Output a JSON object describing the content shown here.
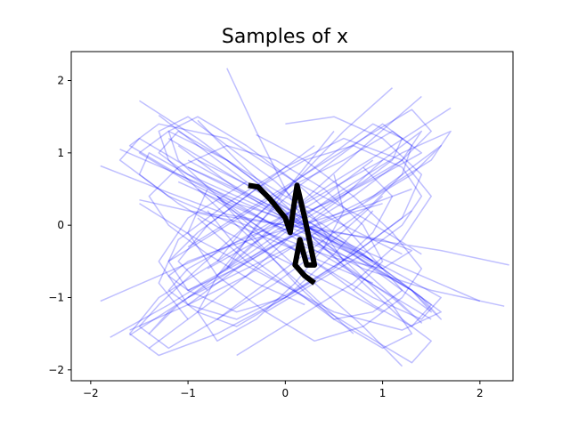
{
  "chart_data": {
    "type": "line",
    "title": "Samples of x",
    "xlabel": "",
    "ylabel": "",
    "xlim": [
      -2.2,
      2.34
    ],
    "ylim": [
      -2.15,
      2.4
    ],
    "x_ticks": [
      -2,
      -1,
      0,
      1,
      2
    ],
    "y_ticks": [
      -2,
      -1,
      0,
      1,
      2
    ],
    "x_tick_labels": [
      "−2",
      "−1",
      "0",
      "1",
      "2"
    ],
    "y_tick_labels": [
      "−2",
      "−1",
      "0",
      "1",
      "2"
    ],
    "grid": false,
    "legend": "none",
    "colors": {
      "samples": "#0000ff",
      "highlight": "#000000",
      "axes": "#000000"
    },
    "sample_opacity": 0.25,
    "series": [
      {
        "x": [
          -1.9,
          -1.2,
          -0.6,
          0.0,
          0.7,
          1.3,
          1.6,
          1.2,
          0.5,
          -0.2,
          -0.9,
          -1.5
        ],
        "y": [
          0.82,
          0.45,
          0.15,
          0.0,
          -0.4,
          -0.9,
          -1.2,
          -1.45,
          -1.2,
          -0.7,
          -0.2,
          0.3
        ]
      },
      {
        "x": [
          -1.5,
          -0.9,
          -0.3,
          0.1,
          0.6,
          1.1,
          1.4,
          1.2,
          0.7,
          0.1,
          -0.5,
          -1.1
        ],
        "y": [
          1.72,
          1.2,
          0.6,
          0.05,
          -0.55,
          -1.0,
          -1.35,
          -1.1,
          -0.5,
          0.0,
          0.5,
          1.1
        ]
      },
      {
        "x": [
          -0.6,
          -0.3,
          0.0,
          0.3,
          0.8,
          1.2,
          1.5,
          1.3,
          0.8,
          0.2,
          -0.4,
          -0.9
        ],
        "y": [
          2.17,
          1.3,
          0.5,
          -0.2,
          -0.8,
          -1.3,
          -1.6,
          -1.9,
          -1.5,
          -1.0,
          -0.5,
          0.1
        ]
      },
      {
        "x": [
          2.3,
          1.6,
          0.9,
          0.2,
          -0.5,
          -1.1,
          -1.6,
          -1.3,
          -0.6,
          0.1,
          0.8,
          1.4
        ],
        "y": [
          -0.55,
          -0.35,
          -0.2,
          0.0,
          0.3,
          0.7,
          1.1,
          1.4,
          1.2,
          0.6,
          0.1,
          -0.4
        ]
      },
      {
        "x": [
          1.7,
          1.1,
          0.5,
          -0.1,
          -0.7,
          -1.3,
          -1.6,
          -1.3,
          -0.7,
          0.0,
          0.7,
          1.3
        ],
        "y": [
          1.62,
          1.1,
          0.6,
          0.05,
          -0.5,
          -1.0,
          -1.5,
          -1.8,
          -1.5,
          -1.0,
          -0.4,
          0.2
        ]
      },
      {
        "x": [
          -1.8,
          -1.2,
          -0.6,
          0.0,
          0.6,
          1.2,
          1.7,
          1.5,
          0.9,
          0.3,
          -0.3,
          -1.0
        ],
        "y": [
          -1.55,
          -1.1,
          -0.6,
          -0.05,
          0.5,
          1.0,
          1.3,
          0.9,
          0.4,
          0.0,
          -0.4,
          -0.9
        ]
      },
      {
        "x": [
          2.0,
          1.4,
          0.8,
          0.2,
          -0.4,
          -1.0,
          -1.5,
          -1.7,
          -1.2,
          -0.5,
          0.2,
          0.9
        ],
        "y": [
          -1.05,
          -0.7,
          -0.35,
          0.0,
          0.4,
          0.8,
          1.2,
          0.9,
          0.4,
          0.0,
          -0.4,
          -0.8
        ]
      },
      {
        "x": [
          2.25,
          1.5,
          0.8,
          0.2,
          -0.4,
          -1.0,
          -1.5,
          -1.2,
          -0.6,
          0.0,
          0.6,
          1.2
        ],
        "y": [
          -1.12,
          -0.9,
          -0.6,
          -0.2,
          0.2,
          0.6,
          1.0,
          1.3,
          0.9,
          0.4,
          0.0,
          -0.4
        ]
      },
      {
        "x": [
          -1.6,
          -1.0,
          -0.4,
          0.1,
          0.7,
          1.2,
          1.5,
          1.3,
          0.8,
          0.2,
          -0.4,
          -1.0
        ],
        "y": [
          -1.52,
          -1.0,
          -0.5,
          0.0,
          0.5,
          0.9,
          1.3,
          1.6,
          1.2,
          0.7,
          0.2,
          -0.3
        ]
      },
      {
        "x": [
          -1.3,
          -0.8,
          -0.3,
          0.2,
          0.8,
          1.3,
          1.6,
          1.4,
          0.9,
          0.3,
          -0.3,
          -0.9
        ],
        "y": [
          1.52,
          1.0,
          0.5,
          0.0,
          -0.5,
          -0.9,
          -1.3,
          -1.0,
          -0.5,
          0.0,
          0.5,
          0.9
        ]
      },
      {
        "x": [
          -1.4,
          -0.9,
          -0.4,
          0.1,
          0.6,
          1.0,
          1.4,
          1.2,
          0.7,
          0.1,
          -0.5,
          -1.0
        ],
        "y": [
          -1.7,
          -1.2,
          -0.7,
          -0.1,
          0.4,
          0.9,
          1.3,
          0.9,
          0.4,
          -0.1,
          -0.6,
          -1.1
        ]
      },
      {
        "x": [
          -0.9,
          -0.5,
          -0.1,
          0.3,
          0.7,
          1.1,
          1.3,
          1.0,
          0.5,
          0.0,
          -0.5,
          -0.8
        ],
        "y": [
          1.45,
          0.9,
          0.4,
          -0.1,
          -0.6,
          -1.1,
          -1.5,
          -1.7,
          -1.3,
          -0.8,
          -0.3,
          0.2
        ]
      },
      {
        "x": [
          1.1,
          0.6,
          0.1,
          -0.4,
          -0.9,
          -1.3,
          -1.5,
          -1.2,
          -0.7,
          -0.1,
          0.5,
          1.0
        ],
        "y": [
          1.9,
          1.3,
          0.6,
          0.0,
          -0.6,
          -1.1,
          -1.4,
          -1.7,
          -1.3,
          -0.8,
          -0.2,
          0.4
        ]
      },
      {
        "x": [
          1.4,
          0.9,
          0.4,
          -0.1,
          -0.6,
          -1.1,
          -1.4,
          -1.2,
          -0.7,
          -0.2,
          0.4,
          0.9
        ],
        "y": [
          1.78,
          1.2,
          0.6,
          0.0,
          -0.6,
          -1.1,
          -1.5,
          -1.2,
          -0.7,
          -0.1,
          0.4,
          0.9
        ]
      },
      {
        "x": [
          0.0,
          0.5,
          1.0,
          1.4,
          1.2,
          0.7,
          0.1,
          -0.5,
          -1.0,
          -1.3,
          -1.0,
          -0.4
        ],
        "y": [
          1.4,
          1.5,
          1.2,
          0.7,
          0.1,
          -0.4,
          -0.9,
          -1.3,
          -1.1,
          -0.5,
          0.1,
          0.6
        ]
      },
      {
        "x": [
          -1.7,
          -1.1,
          -0.5,
          0.1,
          0.7,
          1.2,
          1.6,
          1.4,
          0.9,
          0.3,
          -0.3,
          -0.9
        ],
        "y": [
          1.05,
          0.7,
          0.35,
          0.0,
          -0.35,
          -0.7,
          -1.0,
          -1.3,
          -1.0,
          -0.5,
          0.0,
          0.5
        ]
      },
      {
        "x": [
          -1.6,
          -1.0,
          -0.4,
          0.2,
          0.8,
          1.3,
          1.6,
          1.3,
          0.8,
          0.2,
          -0.4,
          -1.0
        ],
        "y": [
          -1.45,
          -1.1,
          -0.7,
          -0.2,
          0.3,
          0.7,
          1.1,
          0.8,
          0.3,
          -0.2,
          -0.6,
          -1.0
        ]
      },
      {
        "x": [
          0.5,
          0.2,
          -0.1,
          -0.4,
          -0.7,
          -0.9,
          -0.7,
          -0.3,
          0.1,
          0.4,
          0.6,
          0.5
        ],
        "y": [
          1.3,
          0.8,
          0.3,
          -0.2,
          -0.7,
          -1.2,
          -1.6,
          -1.3,
          -0.8,
          -0.3,
          0.2,
          0.7
        ]
      },
      {
        "x": [
          -0.5,
          0.1,
          0.7,
          1.2,
          1.5,
          1.2,
          0.6,
          0.0,
          -0.6,
          -1.1,
          -1.3,
          -1.0
        ],
        "y": [
          -1.8,
          -1.3,
          -0.8,
          -0.2,
          0.4,
          0.9,
          1.2,
          0.8,
          0.3,
          -0.2,
          -0.8,
          -1.3
        ]
      },
      {
        "x": [
          -1.9,
          -1.3,
          -0.7,
          -0.1,
          0.5,
          1.0,
          1.4,
          1.1,
          0.6,
          0.0,
          -0.6,
          -1.2
        ],
        "y": [
          -1.05,
          -0.7,
          -0.35,
          0.0,
          0.35,
          0.7,
          1.0,
          1.3,
          0.9,
          0.5,
          0.0,
          -0.5
        ]
      },
      {
        "x": [
          1.2,
          0.8,
          0.3,
          -0.2,
          -0.7,
          -1.1,
          -1.2,
          -0.9,
          -0.4,
          0.1,
          0.6,
          1.0
        ],
        "y": [
          -1.95,
          -1.4,
          -0.8,
          -0.2,
          0.4,
          0.9,
          1.3,
          1.5,
          1.1,
          0.6,
          0.0,
          -0.6
        ]
      },
      {
        "x": [
          -0.3,
          0.2,
          0.7,
          1.1,
          1.4,
          1.2,
          0.8,
          0.3,
          -0.2,
          -0.7,
          -1.0,
          -0.8
        ],
        "y": [
          1.25,
          0.9,
          0.4,
          -0.1,
          -0.6,
          -1.0,
          -1.4,
          -1.6,
          -1.2,
          -0.7,
          -0.1,
          0.5
        ]
      },
      {
        "x": [
          -1.1,
          -0.6,
          -0.1,
          0.4,
          0.9,
          1.3,
          1.5,
          1.2,
          0.7,
          0.1,
          -0.5,
          -1.0
        ],
        "y": [
          0.6,
          0.3,
          0.0,
          -0.3,
          -0.6,
          -0.9,
          -1.2,
          -0.9,
          -0.4,
          0.1,
          0.5,
          0.8
        ]
      },
      {
        "x": [
          0.9,
          0.5,
          0.0,
          -0.5,
          -1.0,
          -1.4,
          -1.5,
          -1.1,
          -0.6,
          0.0,
          0.6,
          1.0
        ],
        "y": [
          -0.5,
          -0.2,
          0.1,
          0.4,
          0.7,
          1.0,
          0.7,
          0.3,
          -0.1,
          -0.5,
          -0.9,
          -1.2
        ]
      },
      {
        "x": [
          -0.8,
          -0.4,
          0.0,
          0.4,
          0.8,
          1.1,
          1.2,
          0.9,
          0.5,
          0.0,
          -0.4,
          -0.7
        ],
        "y": [
          -0.6,
          -0.3,
          0.0,
          0.3,
          0.6,
          0.9,
          1.2,
          1.4,
          1.0,
          0.5,
          0.0,
          -0.5
        ]
      },
      {
        "x": [
          1.5,
          1.0,
          0.5,
          0.0,
          -0.5,
          -1.0,
          -1.3,
          -1.1,
          -0.6,
          -0.1,
          0.4,
          0.9
        ],
        "y": [
          -1.3,
          -0.9,
          -0.5,
          -0.1,
          0.3,
          0.7,
          1.0,
          1.3,
          0.9,
          0.4,
          0.0,
          -0.5
        ]
      },
      {
        "x": [
          -1.2,
          -0.7,
          -0.2,
          0.3,
          0.8,
          1.2,
          1.5,
          1.3,
          0.9,
          0.4,
          -0.2,
          -0.7
        ],
        "y": [
          1.2,
          0.8,
          0.4,
          0.0,
          -0.4,
          -0.8,
          -1.1,
          -1.4,
          -1.1,
          -0.6,
          -0.1,
          0.4
        ]
      },
      {
        "x": [
          0.3,
          -0.1,
          -0.5,
          -0.9,
          -1.2,
          -1.0,
          -0.5,
          0.0,
          0.5,
          0.9,
          1.1,
          0.8
        ],
        "y": [
          1.1,
          0.7,
          0.3,
          -0.1,
          -0.5,
          -0.9,
          -1.2,
          -1.0,
          -0.6,
          -0.1,
          0.4,
          0.8
        ]
      },
      {
        "x": [
          -1.5,
          -1.0,
          -0.5,
          0.0,
          0.5,
          1.0,
          1.3,
          1.0,
          0.5,
          0.0,
          -0.5,
          -1.0
        ],
        "y": [
          0.35,
          0.2,
          0.1,
          0.0,
          -0.1,
          -0.2,
          -0.35,
          -0.6,
          -0.45,
          -0.2,
          0.05,
          0.2
        ]
      },
      {
        "x": [
          1.3,
          0.9,
          0.4,
          -0.1,
          -0.6,
          -1.0,
          -1.2,
          -1.0,
          -0.5,
          0.0,
          0.5,
          1.0
        ],
        "y": [
          0.5,
          0.3,
          0.1,
          -0.1,
          -0.3,
          -0.5,
          -0.7,
          -0.9,
          -0.6,
          -0.2,
          0.1,
          0.3
        ]
      },
      {
        "x": [
          -0.7,
          -0.3,
          0.1,
          0.5,
          0.9,
          1.2,
          1.3,
          1.0,
          0.6,
          0.1,
          -0.3,
          -0.6
        ],
        "y": [
          -1.3,
          -0.9,
          -0.5,
          -0.1,
          0.3,
          0.7,
          1.1,
          1.4,
          1.0,
          0.5,
          0.0,
          -0.6
        ]
      },
      {
        "x": [
          0.7,
          0.3,
          -0.1,
          -0.5,
          -0.9,
          -1.2,
          -1.3,
          -1.0,
          -0.6,
          -0.1,
          0.3,
          0.6
        ],
        "y": [
          -1.5,
          -1.0,
          -0.5,
          0.0,
          0.5,
          0.9,
          1.3,
          1.5,
          1.1,
          0.6,
          0.1,
          -0.5
        ]
      },
      {
        "x": [
          -1.0,
          -0.6,
          -0.2,
          0.2,
          0.6,
          1.0,
          1.2,
          0.9,
          0.5,
          0.1,
          -0.3,
          -0.7
        ],
        "y": [
          0.9,
          0.6,
          0.3,
          0.0,
          -0.3,
          -0.6,
          -0.9,
          -1.2,
          -1.3,
          -0.8,
          -0.2,
          0.4
        ]
      },
      {
        "x": [
          1.0,
          0.6,
          0.2,
          -0.2,
          -0.6,
          -1.0,
          -1.2,
          -0.9,
          -0.5,
          0.0,
          0.5,
          0.9
        ],
        "y": [
          0.9,
          0.6,
          0.3,
          0.0,
          -0.3,
          -0.6,
          -0.9,
          -1.2,
          -1.4,
          -1.0,
          -0.4,
          0.2
        ]
      },
      {
        "x": [
          -0.2,
          0.3,
          0.8,
          1.2,
          1.4,
          1.2,
          0.7,
          0.2,
          -0.3,
          -0.8,
          -1.1,
          -0.8
        ],
        "y": [
          -1.2,
          -0.8,
          -0.4,
          0.0,
          0.4,
          0.8,
          1.1,
          0.9,
          0.5,
          0.0,
          -0.5,
          -0.9
        ]
      },
      {
        "x": [
          0.2,
          -0.3,
          -0.8,
          -1.2,
          -1.4,
          -1.1,
          -0.6,
          -0.1,
          0.4,
          0.8,
          1.0,
          0.7
        ],
        "y": [
          -1.1,
          -0.8,
          -0.4,
          0.0,
          0.4,
          0.8,
          1.1,
          0.9,
          0.5,
          0.0,
          -0.5,
          -0.9
        ]
      }
    ],
    "highlight": {
      "x": [
        -0.38,
        -0.28,
        -0.15,
        0.0,
        0.05,
        0.08,
        0.12,
        0.2,
        0.3,
        0.22,
        0.15,
        0.1,
        0.2,
        0.3
      ],
      "y": [
        0.55,
        0.53,
        0.35,
        0.1,
        -0.1,
        0.2,
        0.55,
        0.1,
        -0.55,
        -0.55,
        -0.2,
        -0.55,
        -0.7,
        -0.8
      ]
    }
  }
}
